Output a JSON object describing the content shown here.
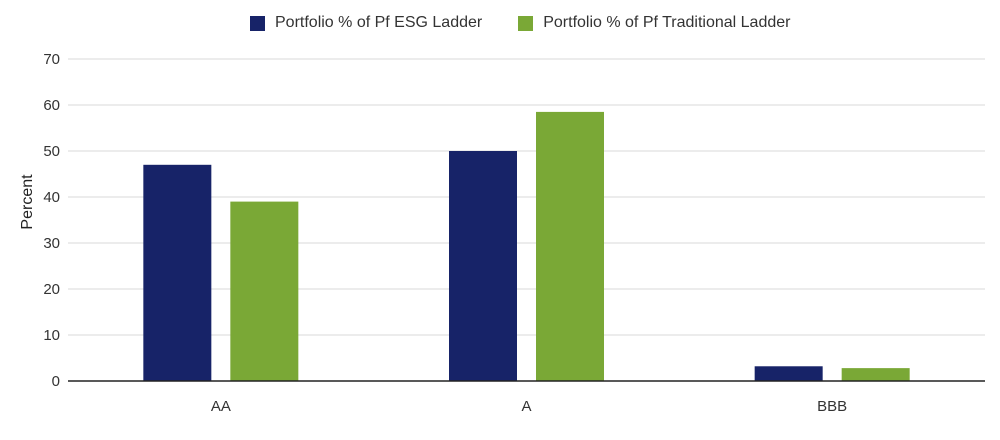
{
  "chart_data": {
    "type": "bar",
    "title": "",
    "xlabel": "",
    "ylabel": "Percent",
    "categories": [
      "AA",
      "A",
      "BBB"
    ],
    "series": [
      {
        "name": "Portfolio % of Pf ESG Ladder",
        "values": [
          47,
          50,
          3.2
        ],
        "color": "#172368"
      },
      {
        "name": "Portfolio % of Pf Traditional Ladder",
        "values": [
          39,
          58.5,
          2.8
        ],
        "color": "#7aa836"
      }
    ],
    "ylim": [
      0,
      70
    ],
    "yticks": [
      0,
      10,
      20,
      30,
      40,
      50,
      60,
      70
    ],
    "grid": true,
    "legend_position": "top"
  }
}
